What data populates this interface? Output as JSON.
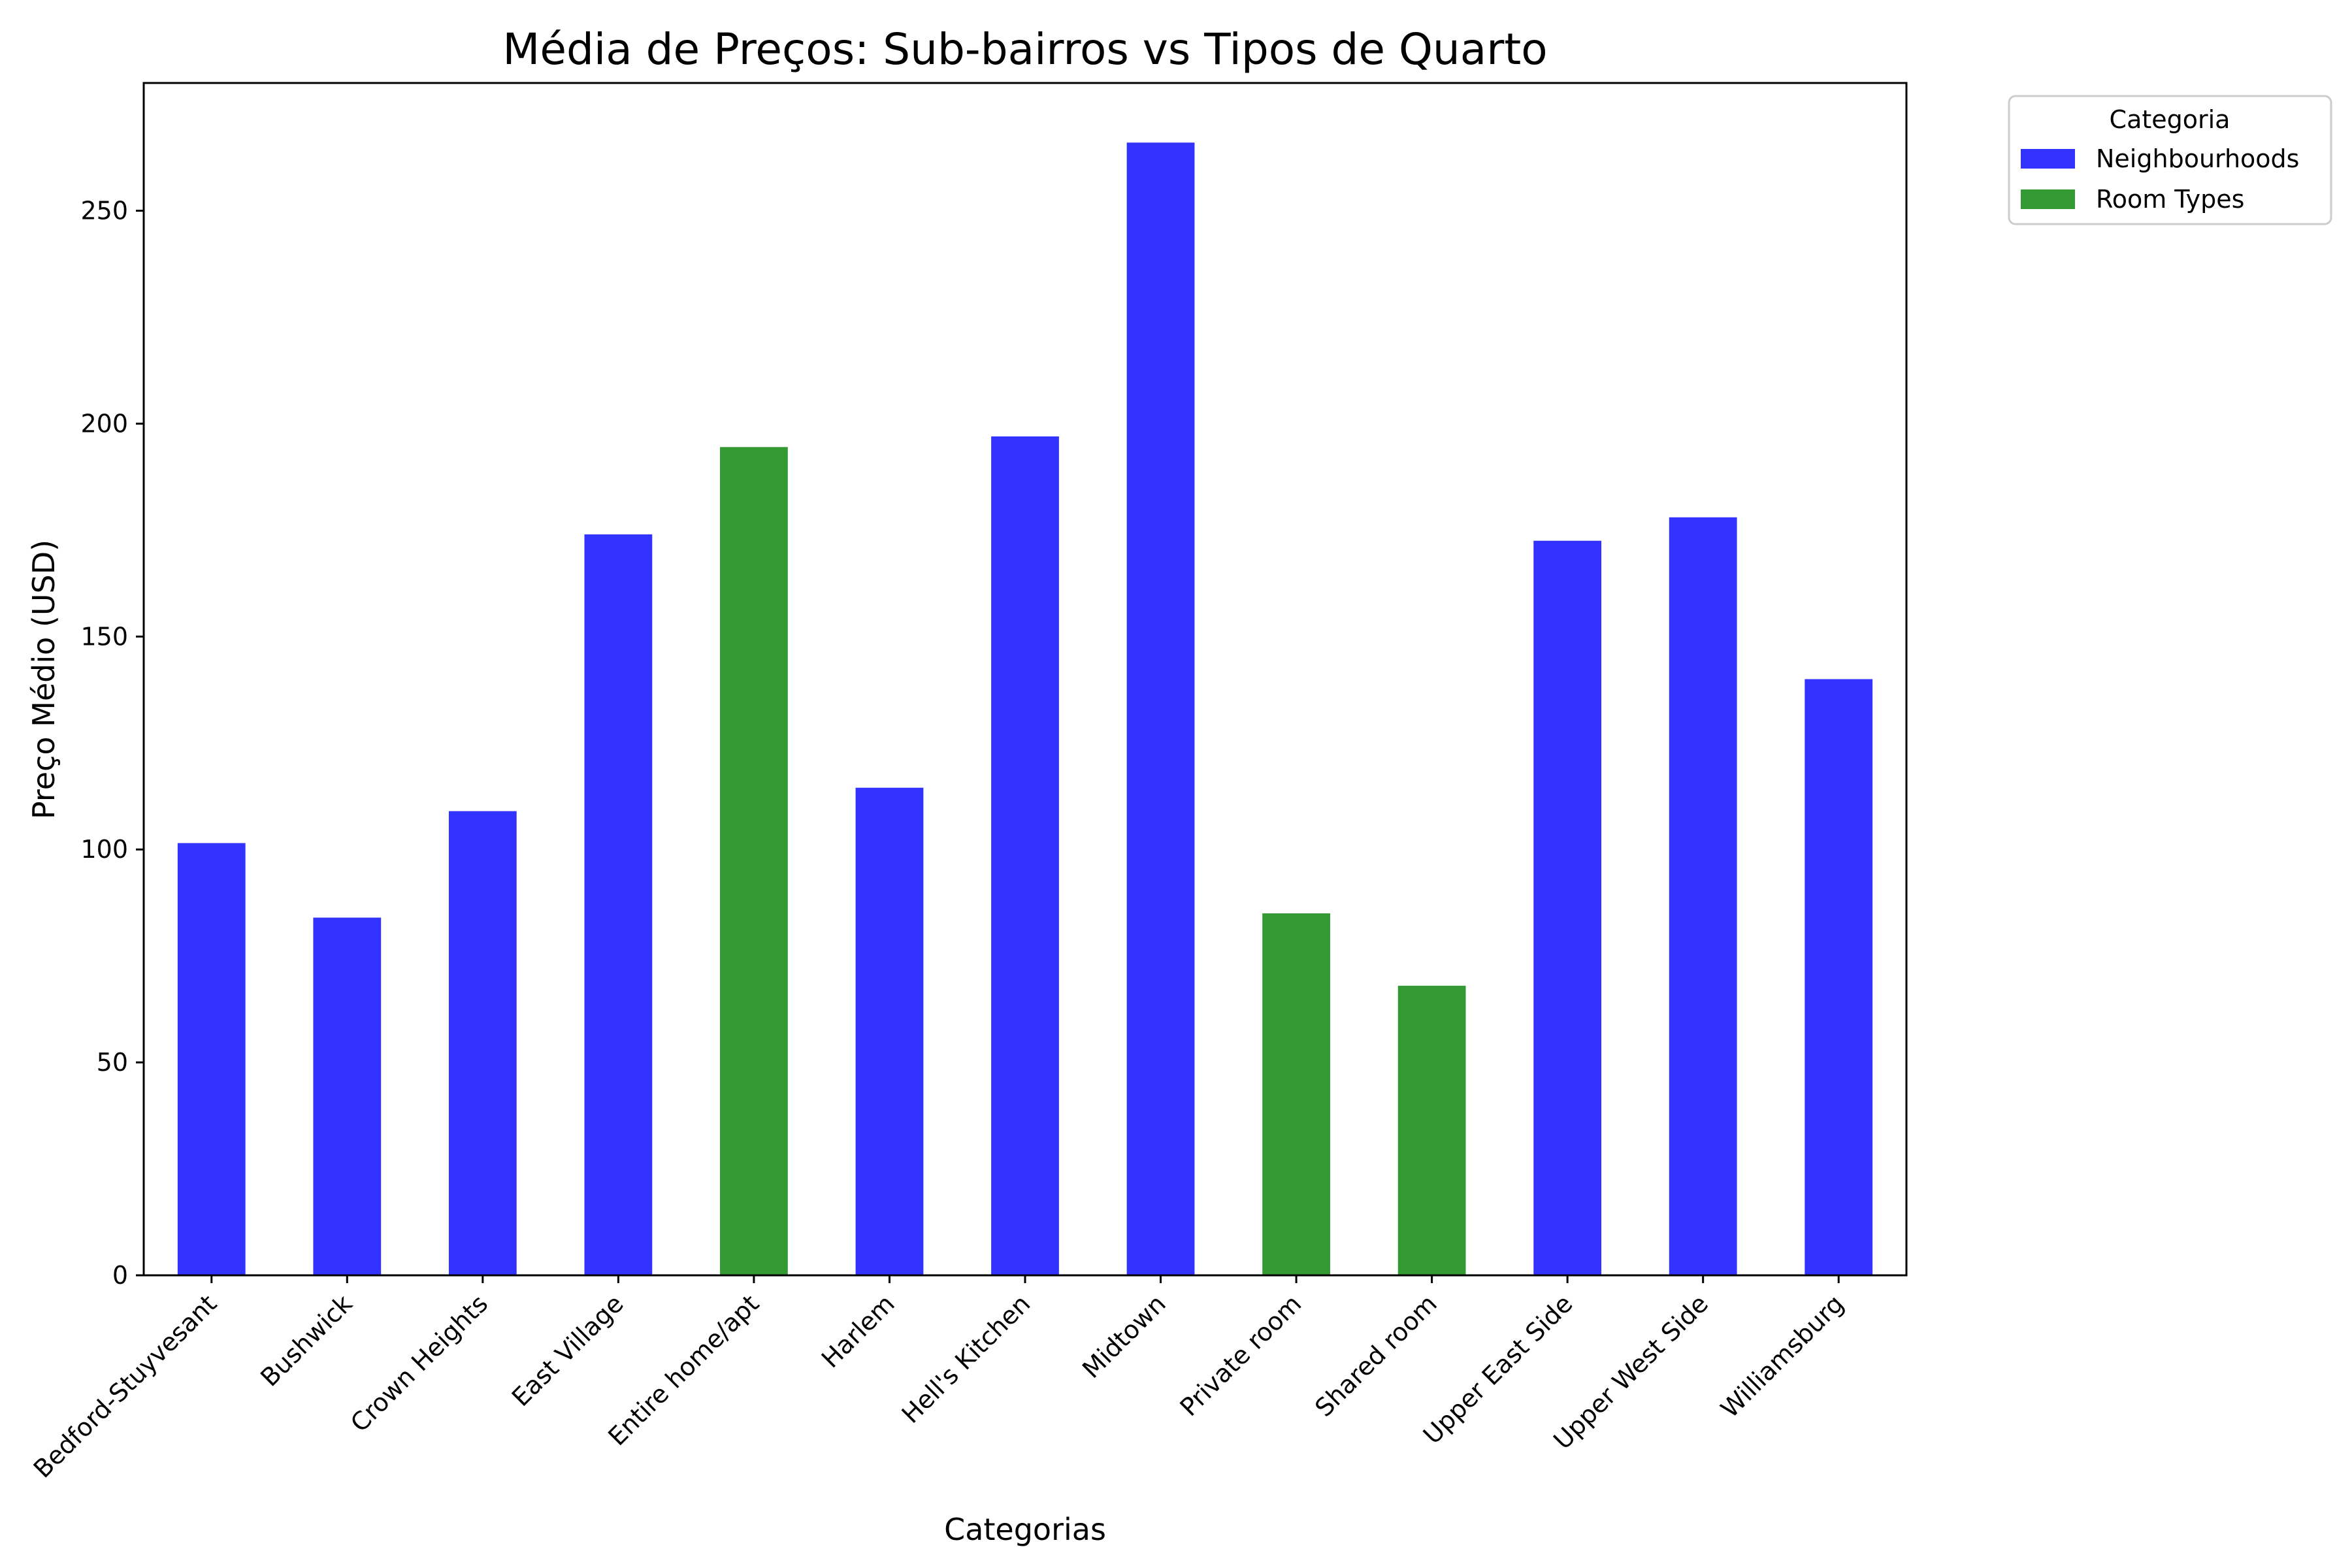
{
  "chart_data": {
    "type": "bar",
    "title": "Média de Preços: Sub-bairros vs Tipos de Quarto",
    "xlabel": "Categorias",
    "ylabel": "Preço Médio (USD)",
    "ylim": [
      0,
      280
    ],
    "yticks": [
      0,
      50,
      100,
      150,
      200,
      250
    ],
    "grid": false,
    "legend": {
      "title": "Categoria",
      "placement": "outside-top-right",
      "entries": [
        {
          "label": "Neighbourhoods",
          "color": "#3333ff"
        },
        {
          "label": "Room Types",
          "color": "#339933"
        }
      ]
    },
    "categories": [
      "Bedford-Stuyvesant",
      "Bushwick",
      "Crown Heights",
      "East Village",
      "Entire home/apt",
      "Harlem",
      "Hell's Kitchen",
      "Midtown",
      "Private room",
      "Shared room",
      "Upper East Side",
      "Upper West Side",
      "Williamsburg"
    ],
    "values": [
      101.5,
      84,
      109,
      174,
      194.5,
      114.5,
      197,
      266,
      85,
      68,
      172.5,
      178,
      140
    ],
    "groups": [
      "Neighbourhoods",
      "Neighbourhoods",
      "Neighbourhoods",
      "Neighbourhoods",
      "Room Types",
      "Neighbourhoods",
      "Neighbourhoods",
      "Neighbourhoods",
      "Room Types",
      "Room Types",
      "Neighbourhoods",
      "Neighbourhoods",
      "Neighbourhoods"
    ],
    "colors": {
      "Neighbourhoods": "#3333ff",
      "Room Types": "#339933"
    }
  }
}
